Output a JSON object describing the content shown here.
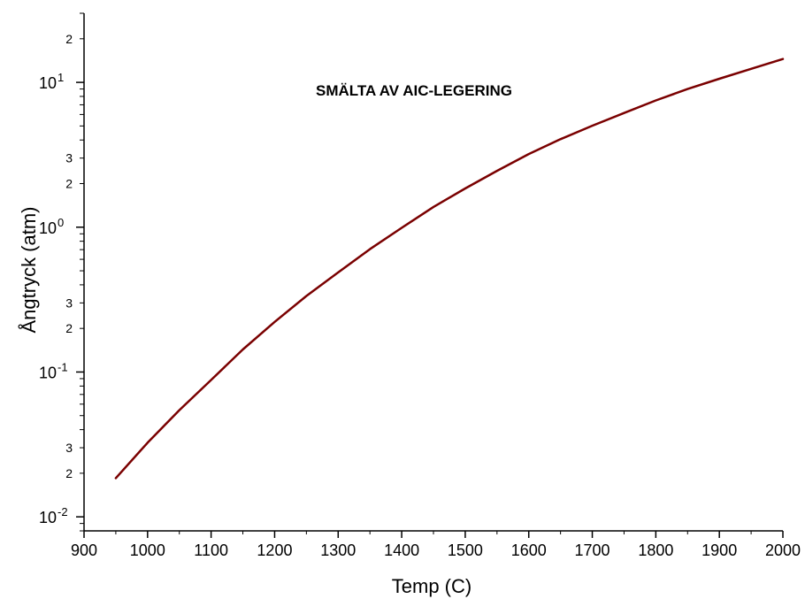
{
  "chart_data": {
    "type": "line",
    "title": "SMÄLTA AV AIC-LEGERING",
    "xlabel": "Temp (C)",
    "ylabel": "Ångtryck (atm)",
    "xlim": [
      900,
      2000
    ],
    "ylim": [
      0.008,
      30
    ],
    "yscale": "log",
    "grid": false,
    "x_ticks": [
      900,
      1000,
      1100,
      1200,
      1300,
      1400,
      1500,
      1600,
      1700,
      1800,
      1900,
      2000
    ],
    "y_major_ticks": [
      {
        "value": 0.01,
        "mantissa": "10",
        "exponent": "-2"
      },
      {
        "value": 0.1,
        "mantissa": "10",
        "exponent": "-1"
      },
      {
        "value": 1,
        "mantissa": "10",
        "exponent": "0"
      },
      {
        "value": 10,
        "mantissa": "10",
        "exponent": "1"
      }
    ],
    "y_minor_labels": [
      {
        "value": 0.02,
        "label": "2"
      },
      {
        "value": 0.03,
        "label": "3"
      },
      {
        "value": 0.2,
        "label": "2"
      },
      {
        "value": 0.3,
        "label": "3"
      },
      {
        "value": 2,
        "label": "2"
      },
      {
        "value": 3,
        "label": "3"
      },
      {
        "value": 20,
        "label": "2"
      }
    ],
    "series": [
      {
        "color": "#7a0000",
        "x": [
          950,
          1000,
          1050,
          1100,
          1150,
          1200,
          1250,
          1300,
          1350,
          1400,
          1450,
          1500,
          1550,
          1600,
          1650,
          1700,
          1750,
          1800,
          1850,
          1900,
          1950,
          2000
        ],
        "y": [
          0.0185,
          0.0325,
          0.0545,
          0.088,
          0.143,
          0.222,
          0.335,
          0.487,
          0.705,
          0.99,
          1.38,
          1.85,
          2.45,
          3.2,
          4.05,
          5.02,
          6.15,
          7.5,
          9.0,
          10.6,
          12.4,
          14.5
        ]
      }
    ]
  }
}
